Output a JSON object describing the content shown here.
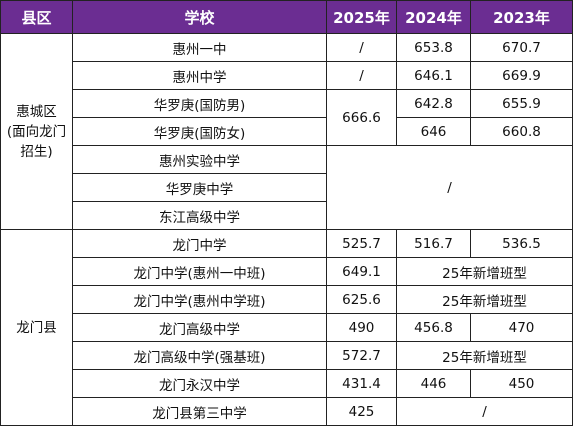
{
  "table": {
    "header": [
      "县区",
      "学校",
      "2025年",
      "2024年",
      "2023年"
    ],
    "rows": [
      [
        "惠城区\n(面向龙门\n招生)",
        "惠州一中",
        "/",
        "653.8",
        "670.7"
      ],
      [
        "惠州中学",
        "/",
        "646.1",
        "669.9"
      ],
      [
        "华罗庚(国防男)",
        "666.6",
        "642.8",
        "655.9"
      ],
      [
        "华罗庚(国防女)",
        "646",
        "660.8"
      ],
      [
        "惠州实验中学",
        "/"
      ],
      [
        "华罗庚中学"
      ],
      [
        "东江高级中学"
      ],
      [
        "龙门县",
        "龙门中学",
        "525.7",
        "516.7",
        "536.5"
      ],
      [
        "龙门中学(惠州一中班)",
        "649.1",
        "25年新增班型"
      ],
      [
        "龙门中学(惠州中学班)",
        "625.6",
        "25年新增班型"
      ],
      [
        "龙门高级中学",
        "490",
        "456.8",
        "470"
      ],
      [
        "龙门高级中学(强基班)",
        "572.7",
        "25年新增班型"
      ],
      [
        "龙门永汉中学",
        "431.4",
        "446",
        "450"
      ],
      [
        "龙门县第三中学",
        "425",
        "/"
      ]
    ]
  }
}
